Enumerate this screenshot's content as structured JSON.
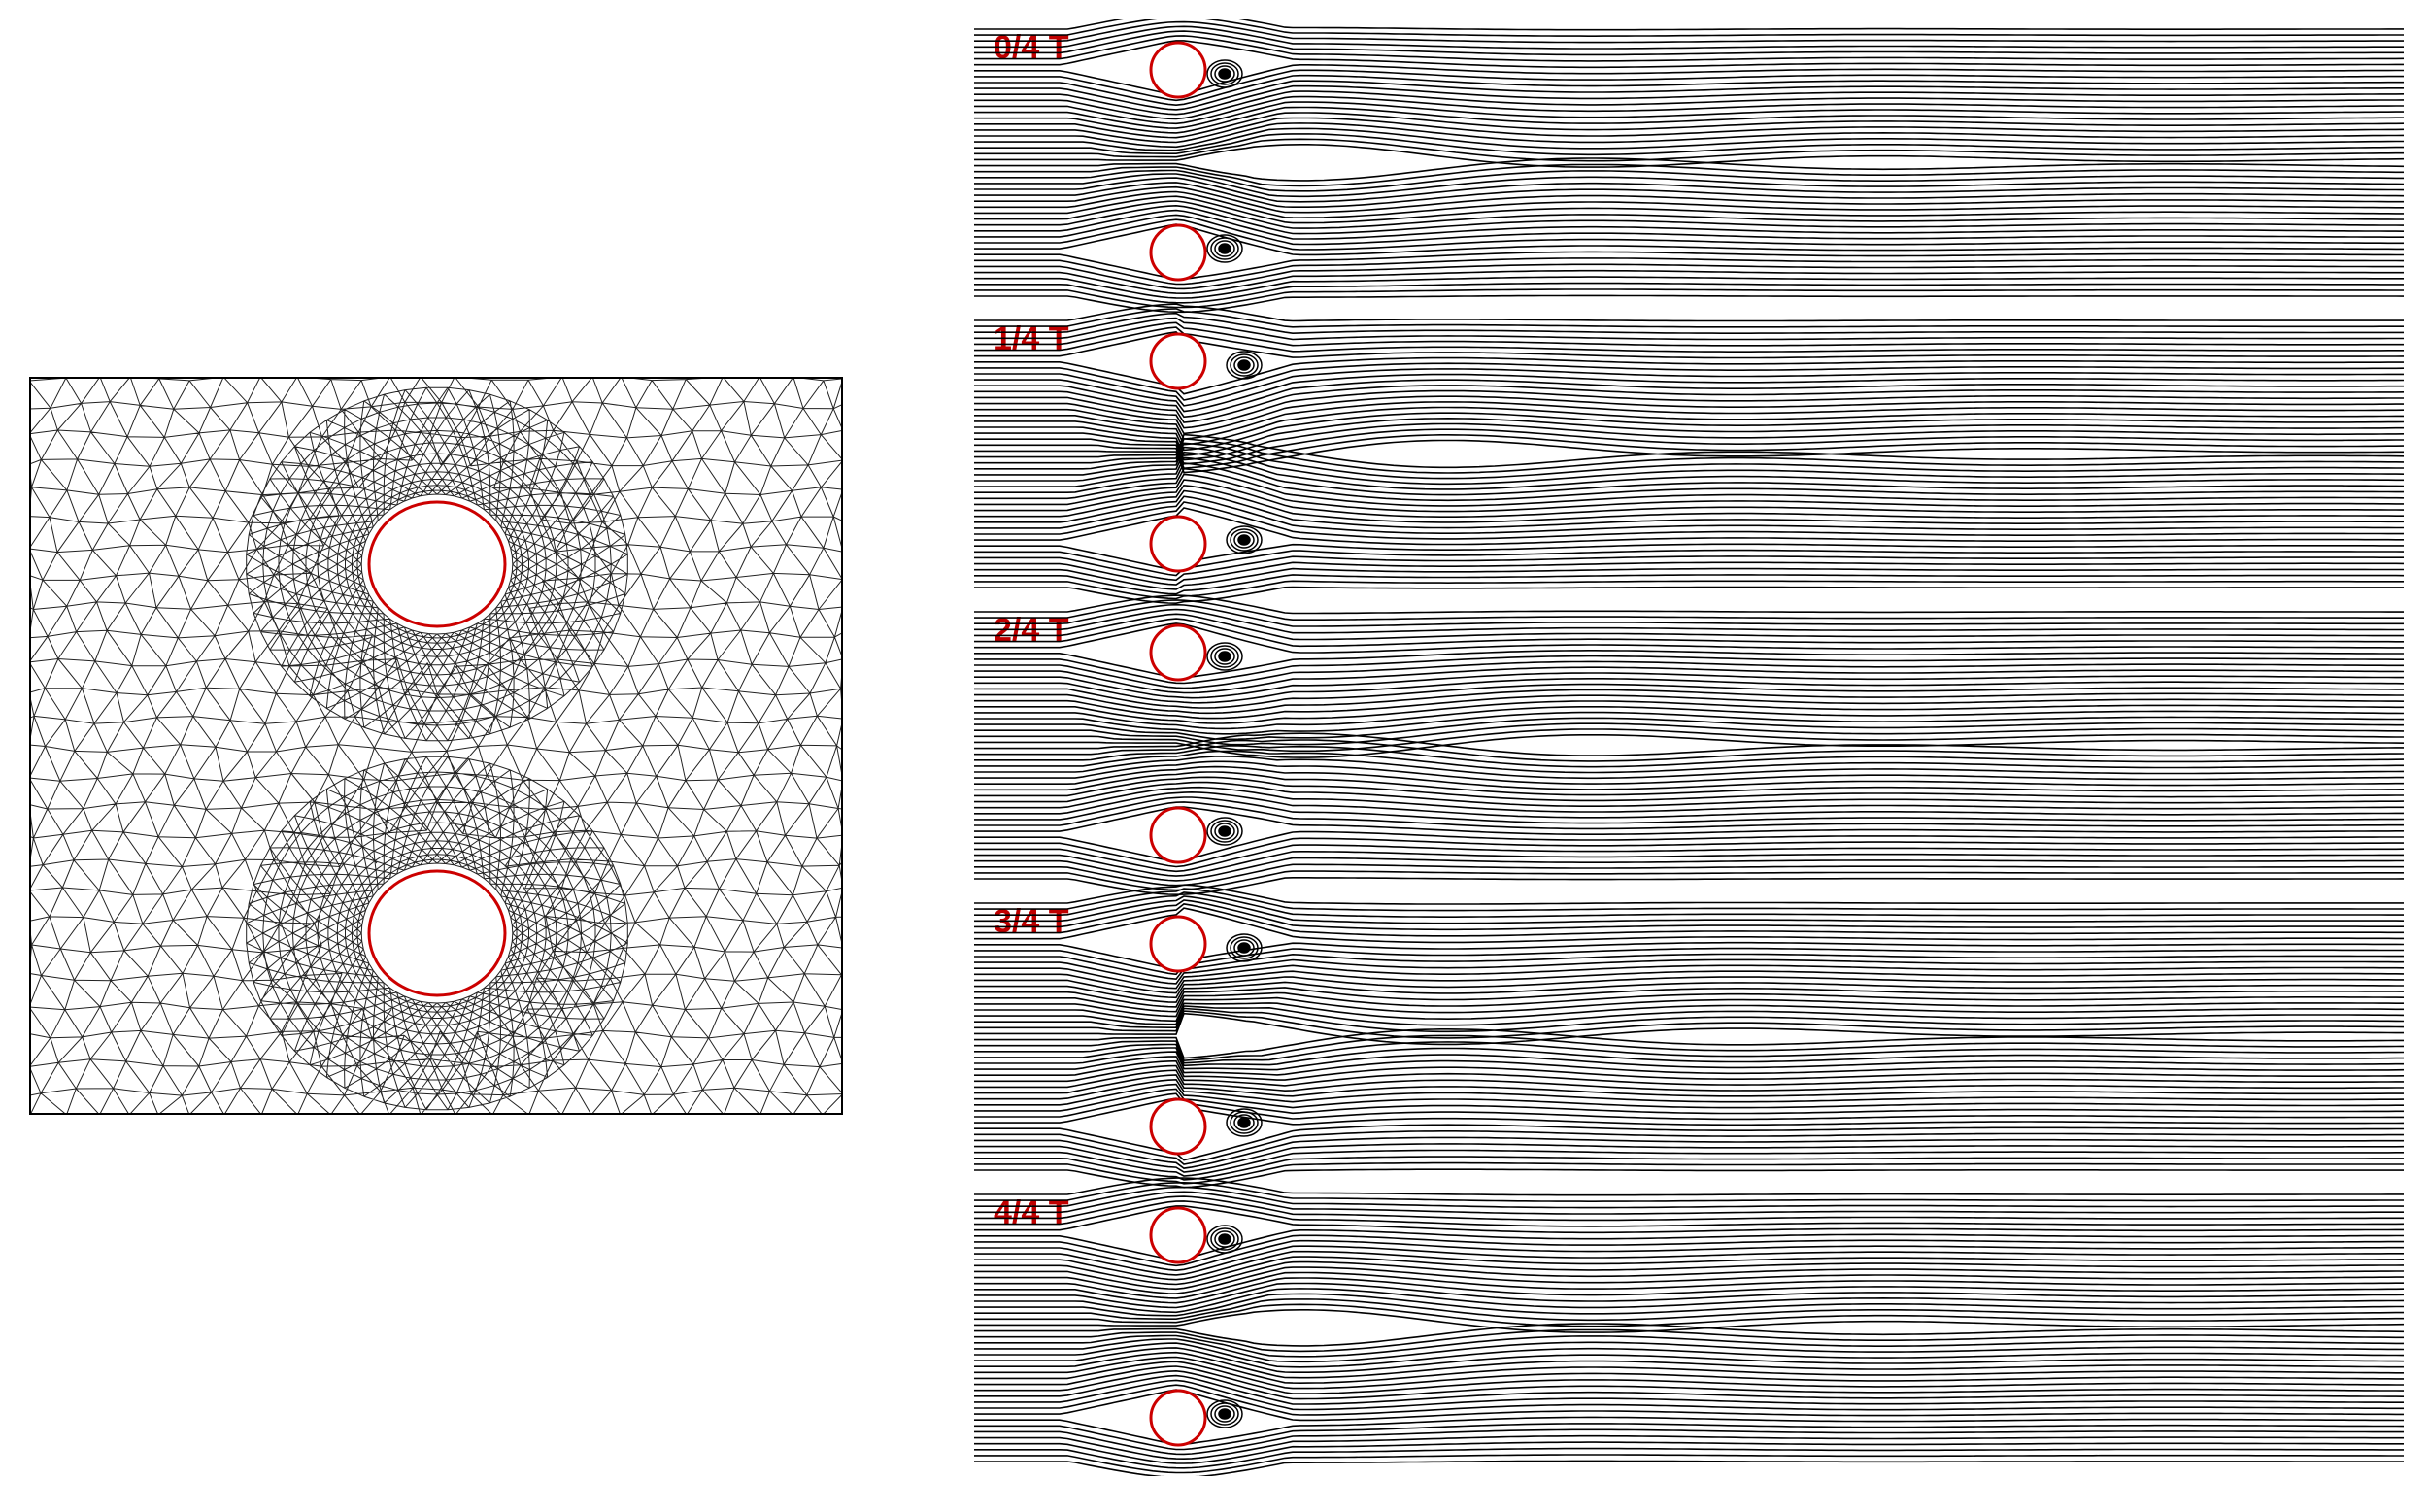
{
  "mesh": {
    "border_color": "#000000",
    "cylinder_outline_color": "#cc0000",
    "cylinder_count": 2
  },
  "flow_snapshots": [
    {
      "label": "0/4 T",
      "phase": 0.0
    },
    {
      "label": "1/4 T",
      "phase": 0.25
    },
    {
      "label": "2/4 T",
      "phase": 0.5
    },
    {
      "label": "3/4 T",
      "phase": 0.75
    },
    {
      "label": "4/4 T",
      "phase": 1.0
    }
  ],
  "colors": {
    "label": "#c00000",
    "streamline": "#000000",
    "cylinder": "#cc0000"
  }
}
